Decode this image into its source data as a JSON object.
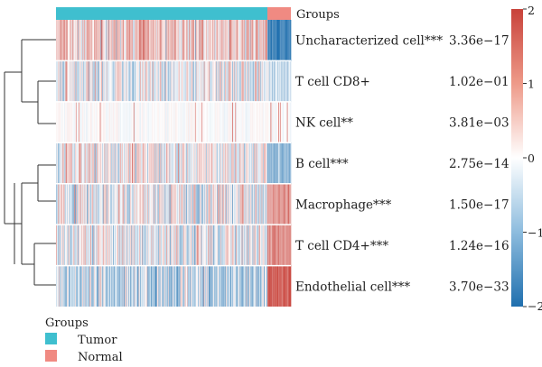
{
  "chart_data": {
    "type": "heatmap",
    "rows": [
      {
        "label": "Uncharacterized cell***",
        "p_value": "3.36e−17",
        "tumor_mean": 0.45,
        "normal_mean": -1.6
      },
      {
        "label": "T cell CD8+",
        "p_value": "1.02e−01",
        "tumor_mean": -0.05,
        "normal_mean": -0.35
      },
      {
        "label": "NK cell**",
        "p_value": "3.81e−03",
        "tumor_mean": 0.0,
        "normal_mean": -0.02
      },
      {
        "label": "B cell***",
        "p_value": "2.75e−14",
        "tumor_mean": 0.15,
        "normal_mean": -0.8
      },
      {
        "label": "Macrophage***",
        "p_value": "1.50e−17",
        "tumor_mean": -0.05,
        "normal_mean": 0.9
      },
      {
        "label": "T cell CD4+***",
        "p_value": "1.24e−16",
        "tumor_mean": -0.15,
        "normal_mean": 1.1
      },
      {
        "label": "Endothelial cell***",
        "p_value": "3.70e−33",
        "tumor_mean": -0.45,
        "normal_mean": 1.6
      }
    ],
    "groups": {
      "title": "Groups",
      "tumor": {
        "label": "Tumor",
        "color": "#3fbfcf",
        "count": 289
      },
      "normal": {
        "label": "Normal",
        "color": "#f08a82",
        "count": 30
      }
    },
    "colorbar": {
      "ticks": [
        "2",
        "1",
        "0",
        "−1",
        "−2"
      ],
      "range": [
        -2,
        2
      ],
      "colors": {
        "high": "#c8423a",
        "mid": "#ffffff",
        "low": "#1f6fae"
      }
    },
    "dendrogram": "row clustering: (Uncharacterized cell, (T cell CD8+, NK cell)), ((B cell, Macrophage), (T cell CD4+, Endothelial cell))",
    "legend_placement": "bottom-left"
  },
  "legend": {
    "title": "Groups",
    "tumor_label": "Tumor",
    "normal_label": "Normal"
  }
}
